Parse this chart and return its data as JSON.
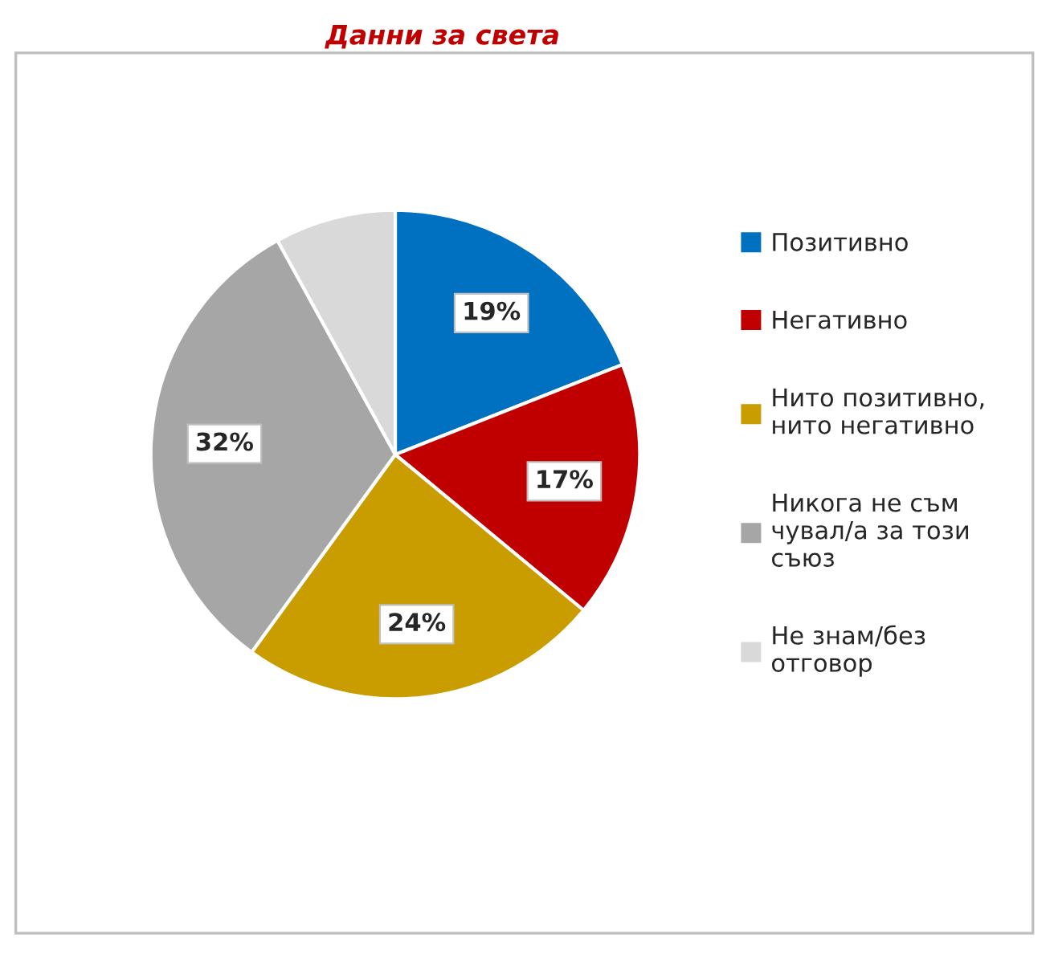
{
  "chart_data": {
    "type": "pie",
    "title": "Данни за света",
    "categories": [
      "Позитивно",
      "Негативно",
      "Нито позитивно, нито негативно",
      "Никога не съм чувал/а за този съюз",
      "Не знам/без отговор"
    ],
    "values": [
      19,
      17,
      24,
      32,
      8
    ],
    "colors": [
      "#0070c0",
      "#c00000",
      "#c99c00",
      "#a6a6a6",
      "#d9d9d9"
    ],
    "value_labels": [
      "19%",
      "17%",
      "24%",
      "32%",
      null
    ],
    "legend": "right"
  }
}
